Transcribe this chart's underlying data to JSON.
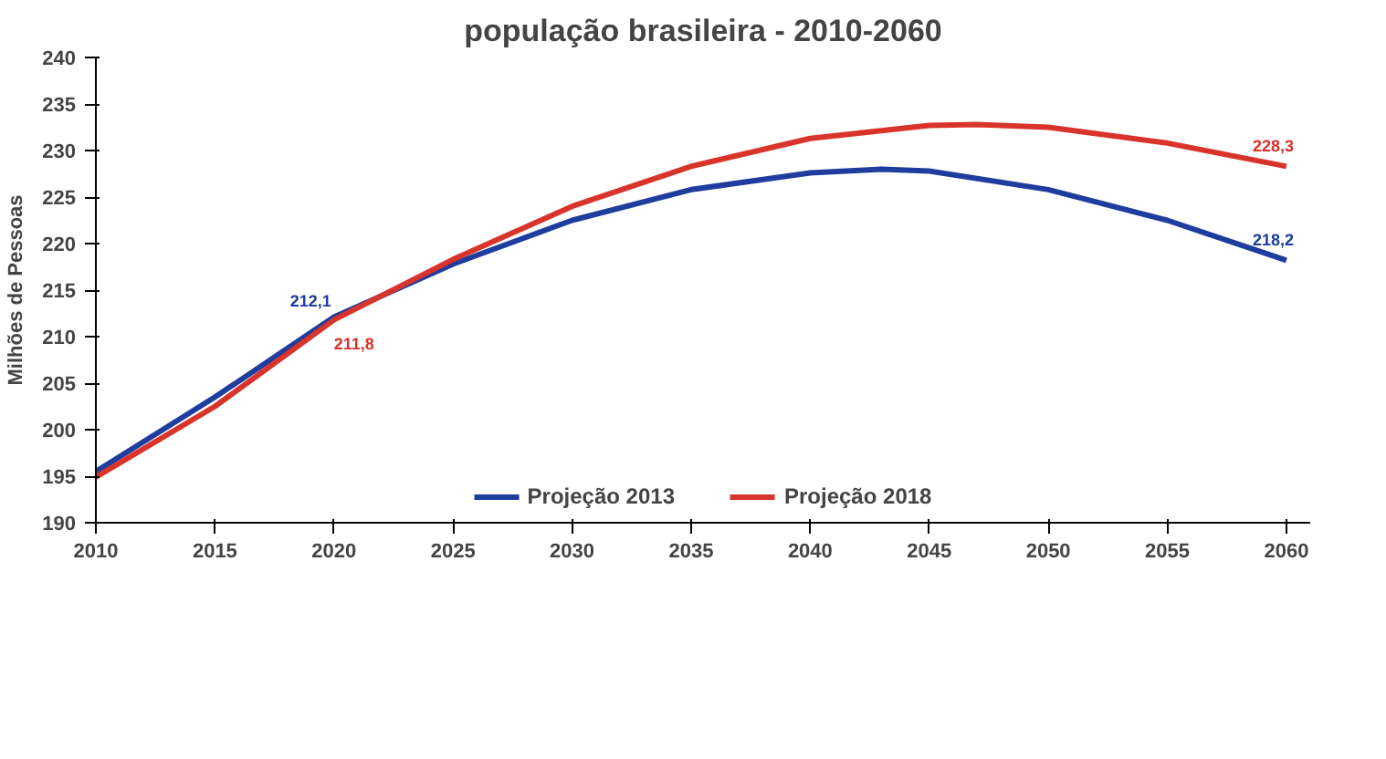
{
  "chart_data": {
    "type": "line",
    "title": "população brasileira - 2010-2060",
    "ylabel": "Milhões de Pessoas",
    "xlim": [
      2010,
      2061
    ],
    "xticks": [
      2010,
      2015,
      2020,
      2025,
      2030,
      2035,
      2040,
      2045,
      2050,
      2055,
      2060
    ],
    "ylim": [
      190,
      240
    ],
    "yticks": [
      190,
      195,
      200,
      205,
      210,
      215,
      220,
      225,
      230,
      235,
      240
    ],
    "grid": false,
    "legend": "bottom",
    "marker": "none",
    "line_style": "solid",
    "series": [
      {
        "name": "Projeção 2013",
        "color": "#1f3d9e",
        "x": [
          2010,
          2015,
          2020,
          2025,
          2030,
          2035,
          2040,
          2043,
          2045,
          2050,
          2055,
          2060
        ],
        "values": [
          195.5,
          203.5,
          212.1,
          217.8,
          222.5,
          225.8,
          227.6,
          228.0,
          227.8,
          225.8,
          222.5,
          218.2
        ],
        "value_labels": [
          null,
          null,
          "212,1",
          null,
          null,
          null,
          null,
          null,
          null,
          null,
          null,
          "218,2"
        ]
      },
      {
        "name": "Projeção 2018",
        "color": "#d9342b",
        "x": [
          2010,
          2015,
          2020,
          2025,
          2030,
          2035,
          2040,
          2045,
          2047,
          2050,
          2055,
          2060
        ],
        "values": [
          194.9,
          202.5,
          211.8,
          218.3,
          224.0,
          228.3,
          231.3,
          232.7,
          232.8,
          232.5,
          230.8,
          228.3
        ],
        "value_labels": [
          null,
          null,
          "211,8",
          null,
          null,
          null,
          null,
          null,
          null,
          null,
          null,
          "228,3"
        ]
      }
    ]
  }
}
